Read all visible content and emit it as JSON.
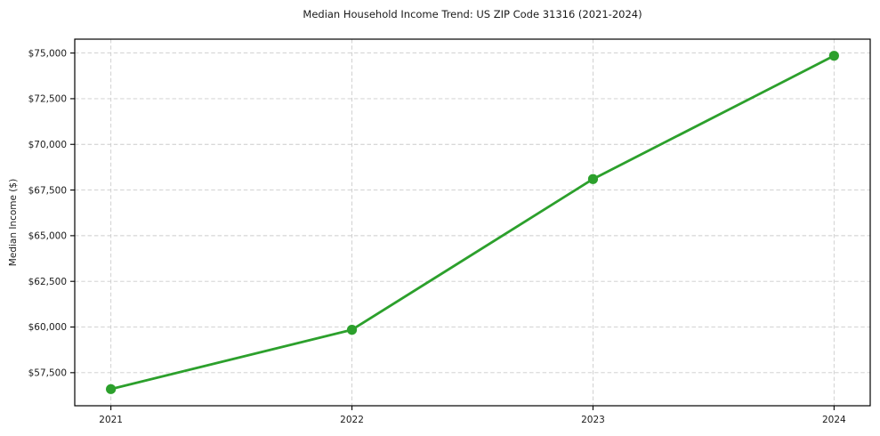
{
  "chart_data": {
    "type": "line",
    "title": "Median Household Income Trend: US ZIP Code 31316 (2021-2024)",
    "xlabel": "",
    "ylabel": "Median Income ($)",
    "x": [
      2021,
      2022,
      2023,
      2024
    ],
    "series": [
      {
        "name": "Median Household Income",
        "values": [
          56600,
          59850,
          68100,
          74850
        ],
        "color": "#2ca02c",
        "marker": "circle"
      }
    ],
    "xlim": [
      2020.85,
      2024.15
    ],
    "ylim": [
      55690,
      75760
    ],
    "xticks": [
      2021,
      2022,
      2023,
      2024
    ],
    "xtick_labels": [
      "2021",
      "2022",
      "2023",
      "2024"
    ],
    "yticks": [
      57500,
      60000,
      62500,
      65000,
      67500,
      70000,
      72500,
      75000
    ],
    "ytick_labels": [
      "$57,500",
      "$60,000",
      "$62,500",
      "$65,000",
      "$67,500",
      "$70,000",
      "$72,500",
      "$75,000"
    ],
    "grid": true,
    "grid_linestyle": "dashed",
    "legend_position": "none"
  },
  "colors": {
    "line": "#2ca02c",
    "marker": "#2ca02c",
    "grid": "#cccccc",
    "spine": "#000000",
    "tick": "#000000",
    "text": "#1a1a1a",
    "background": "#ffffff"
  }
}
